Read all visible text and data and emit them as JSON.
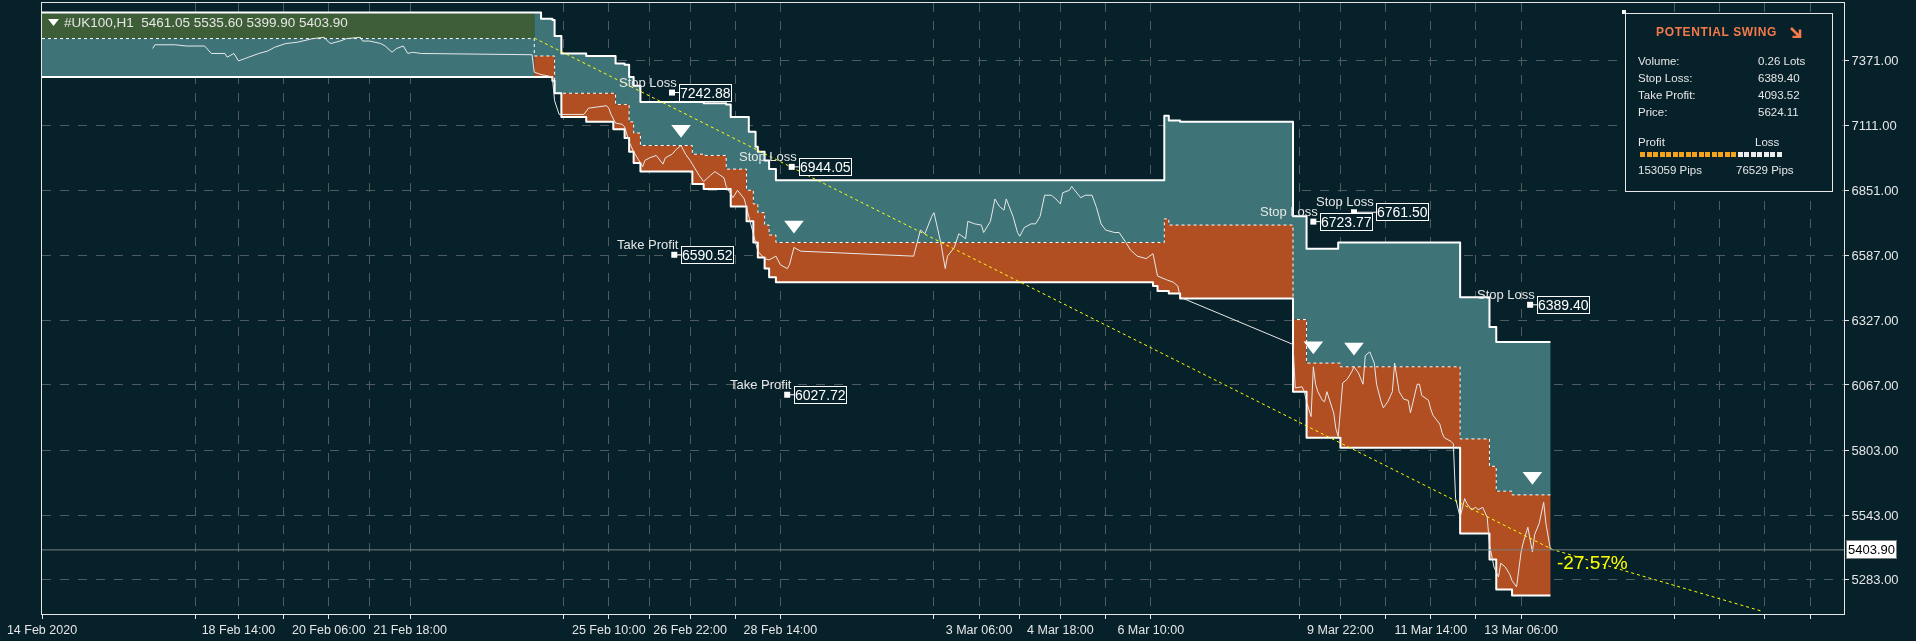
{
  "chart_data": {
    "type": "line",
    "title": "#UK100,H1  5461.05 5535.60 5399.90 5403.90",
    "xlim": [
      "2020-02-14T23:00",
      "2020-03-19T05:00"
    ],
    "ylim": [
      5146,
      7603
    ],
    "xticks": [
      {
        "value": "2020-02-14T23:00",
        "label": "14 Feb 2020"
      },
      {
        "value": "2020-02-17T19:00",
        "label": null
      },
      {
        "value": "2020-02-18T14:00",
        "label": "18 Feb 14:00"
      },
      {
        "value": "2020-02-19T10:00",
        "label": null
      },
      {
        "value": "2020-02-20T06:00",
        "label": "20 Feb 06:00"
      },
      {
        "value": "2020-02-21T00:00",
        "label": null
      },
      {
        "value": "2020-02-21T18:00",
        "label": "21 Feb 18:00"
      },
      {
        "value": "2020-02-24T14:00",
        "label": null
      },
      {
        "value": "2020-02-25T10:00",
        "label": "25 Feb 10:00"
      },
      {
        "value": "2020-02-26T04:00",
        "label": null
      },
      {
        "value": "2020-02-26T22:00",
        "label": "26 Feb 22:00"
      },
      {
        "value": "2020-02-27T18:00",
        "label": null
      },
      {
        "value": "2020-02-28T14:00",
        "label": "28 Feb 14:00"
      },
      {
        "value": "2020-03-02T10:00",
        "label": null
      },
      {
        "value": "2020-03-03T06:00",
        "label": "3 Mar 06:00"
      },
      {
        "value": "2020-03-04T00:00",
        "label": null
      },
      {
        "value": "2020-03-04T18:00",
        "label": "4 Mar 18:00"
      },
      {
        "value": "2020-03-05T14:00",
        "label": null
      },
      {
        "value": "2020-03-06T10:00",
        "label": "6 Mar 10:00"
      },
      {
        "value": "2020-03-09T04:00",
        "label": null
      },
      {
        "value": "2020-03-09T22:00",
        "label": "9 Mar 22:00"
      },
      {
        "value": "2020-03-10T18:00",
        "label": null
      },
      {
        "value": "2020-03-11T14:00",
        "label": "11 Mar 14:00"
      },
      {
        "value": "2020-03-12T10:00",
        "label": null
      },
      {
        "value": "2020-03-13T06:00",
        "label": "13 Mar 06:00"
      },
      {
        "value": "2020-03-16T02:00",
        "label": null
      },
      {
        "value": "2020-03-16T22:00",
        "label": null
      },
      {
        "value": "2020-03-17T18:00",
        "label": null
      },
      {
        "value": "2020-03-18T14:00",
        "label": null
      }
    ],
    "yticks": [
      {
        "value": 7371,
        "label": "7371.00"
      },
      {
        "value": 7111,
        "label": "7111.00"
      },
      {
        "value": 6851,
        "label": "6851.00"
      },
      {
        "value": 6587,
        "label": "6587.00"
      },
      {
        "value": 6327,
        "label": "6327.00"
      },
      {
        "value": 6067,
        "label": "6067.00"
      },
      {
        "value": 5803,
        "label": "5803.00"
      },
      {
        "value": 5543,
        "label": "5543.00"
      },
      {
        "value": 5283,
        "label": "5283.00"
      }
    ],
    "grid": true,
    "series": [
      {
        "type": "step",
        "color": "#3e5e37",
        "x": [
          "2020-02-14T23:00",
          "2020-02-24T01:00"
        ],
        "values": [
          null,
          null
        ],
        "lower": [
          7460,
          7460
        ],
        "upper": [
          7565,
          7565
        ]
      },
      {
        "type": "step",
        "color": "#3e7478",
        "x": [
          "2020-02-14T23:00",
          "2020-02-24T01:00",
          "2020-02-24T04:00",
          "2020-02-24T09:00",
          "2020-02-24T10:00",
          "2020-02-24T13:00",
          "2020-02-25T00:00",
          "2020-02-25T12:00",
          "2020-02-25T13:00",
          "2020-02-25T17:00",
          "2020-02-25T19:00",
          "2020-02-25T21:00",
          "2020-02-26T00:00",
          "2020-02-26T23:00",
          "2020-02-27T04:00",
          "2020-02-27T14:00",
          "2020-02-27T16:00",
          "2020-02-27T23:00",
          "2020-02-28T00:00",
          "2020-02-28T02:00",
          "2020-02-28T03:00",
          "2020-02-28T04:00",
          "2020-02-28T07:00",
          "2020-02-28T09:00",
          "2020-02-28T12:00",
          "2020-03-06T11:00",
          "2020-03-06T13:00",
          "2020-03-06T16:00",
          "2020-03-06T18:00",
          "2020-03-06T23:00",
          "2020-03-09T01:00",
          "2020-03-09T07:00",
          "2020-03-09T21:00",
          "2020-03-09T22:00",
          "2020-03-12T03:00",
          "2020-03-12T16:00",
          "2020-03-12T19:00",
          "2020-03-13T02:00",
          "2020-03-13T19:00"
        ],
        "values": [
          null,
          null,
          null,
          null,
          null,
          null,
          null,
          null,
          null,
          null,
          null,
          null,
          null,
          null,
          null,
          null,
          null,
          null,
          null,
          null,
          null,
          null,
          null,
          null,
          null,
          null,
          null,
          null,
          null,
          null,
          null,
          null,
          null,
          null,
          null,
          null,
          null,
          null,
          null
        ],
        "lower": [
          7305,
          7390,
          7390,
          7390,
          7240,
          7240,
          7240,
          7240,
          7195,
          7195,
          7125,
          7080,
          7030,
          6995,
          6990,
          6935,
          6935,
          6850,
          6850,
          6795,
          6795,
          6760,
          6710,
          6670,
          6640,
          6640,
          6640,
          6735,
          6710,
          6710,
          6330,
          6155,
          6155,
          6140,
          5850,
          5740,
          5640,
          5625,
          5625
        ],
        "upper": [
          7460,
          7565,
          7540,
          7535,
          7470,
          7400,
          7390,
          7390,
          7360,
          7355,
          7305,
          7270,
          7205,
          7205,
          7200,
          7195,
          7145,
          7145,
          7085,
          7085,
          7025,
          7005,
          6970,
          6935,
          6890,
          6890,
          6890,
          7150,
          7130,
          7125,
          6745,
          6615,
          6640,
          6640,
          6420,
          6300,
          6240,
          6240,
          6240
        ]
      },
      {
        "type": "step",
        "color": "#b14f22",
        "x": [
          "2020-02-24T01:00",
          "2020-02-24T04:00",
          "2020-02-24T09:00",
          "2020-02-24T10:00",
          "2020-02-24T13:00",
          "2020-02-25T00:00",
          "2020-02-25T12:00",
          "2020-02-25T13:00",
          "2020-02-25T17:00",
          "2020-02-25T19:00",
          "2020-02-25T21:00",
          "2020-02-26T00:00",
          "2020-02-26T23:00",
          "2020-02-27T04:00",
          "2020-02-27T14:00",
          "2020-02-27T16:00",
          "2020-02-27T23:00",
          "2020-02-28T00:00",
          "2020-02-28T02:00",
          "2020-02-28T03:00",
          "2020-02-28T04:00",
          "2020-02-28T07:00",
          "2020-02-28T09:00",
          "2020-02-28T12:00",
          "2020-03-06T11:00",
          "2020-03-06T13:00",
          "2020-03-06T16:00",
          "2020-03-06T18:00",
          "2020-03-06T23:00",
          "2020-03-09T01:00",
          "2020-03-09T07:00",
          "2020-03-09T21:00",
          "2020-03-09T22:00",
          "2020-03-12T03:00",
          "2020-03-12T16:00",
          "2020-03-12T19:00",
          "2020-03-13T02:00",
          "2020-03-13T19:00"
        ],
        "values": [
          null,
          null,
          null,
          null,
          null,
          null,
          null,
          null,
          null,
          null,
          null,
          null,
          null,
          null,
          null,
          null,
          null,
          null,
          null,
          null,
          null,
          null,
          null,
          null,
          null,
          null,
          null,
          null,
          null,
          null,
          null,
          null,
          null,
          null,
          null,
          null,
          null,
          null
        ],
        "lower": [
          7305,
          7305,
          7290,
          7240,
          7145,
          7125,
          7095,
          7095,
          7060,
          7005,
          6960,
          6925,
          6875,
          6855,
          6855,
          6785,
          6725,
          6725,
          6640,
          6640,
          6580,
          6535,
          6500,
          6480,
          6465,
          6445,
          6445,
          6435,
          6415,
          6040,
          5855,
          5855,
          5815,
          5470,
          5365,
          5245,
          5220,
          5220
        ],
        "upper": [
          7390,
          7390,
          7390,
          7240,
          7240,
          7240,
          7240,
          7195,
          7195,
          7125,
          7080,
          7030,
          6995,
          6990,
          6935,
          6935,
          6850,
          6850,
          6795,
          6795,
          6760,
          6710,
          6670,
          6640,
          6640,
          6640,
          6735,
          6710,
          6710,
          6330,
          6155,
          6155,
          6140,
          5850,
          5740,
          5640,
          5625,
          5625
        ]
      },
      {
        "type": "step",
        "color": "#ffffff",
        "x": [
          "2020-02-14T23:00",
          "2020-02-24T01:00",
          "2020-02-24T04:00",
          "2020-02-24T09:00",
          "2020-02-24T10:00",
          "2020-02-24T13:00",
          "2020-02-25T00:00",
          "2020-02-25T12:00",
          "2020-02-25T13:00",
          "2020-02-25T17:00",
          "2020-02-25T19:00",
          "2020-02-25T21:00",
          "2020-02-26T00:00",
          "2020-02-26T23:00",
          "2020-02-27T04:00",
          "2020-02-27T14:00",
          "2020-02-27T16:00",
          "2020-02-27T23:00",
          "2020-02-28T00:00",
          "2020-02-28T02:00",
          "2020-02-28T03:00",
          "2020-02-28T04:00",
          "2020-02-28T07:00",
          "2020-02-28T09:00",
          "2020-02-28T12:00",
          "2020-03-06T11:00",
          "2020-03-06T13:00",
          "2020-03-06T16:00",
          "2020-03-06T18:00",
          "2020-03-06T23:00",
          "2020-03-09T01:00",
          "2020-03-09T07:00",
          "2020-03-09T21:00",
          "2020-03-09T22:00",
          "2020-03-12T03:00",
          "2020-03-12T16:00",
          "2020-03-12T19:00",
          "2020-03-13T02:00",
          "2020-03-13T19:00"
        ],
        "values": [
          7565,
          7565,
          7540,
          7535,
          7470,
          7400,
          7390,
          7390,
          7360,
          7355,
          7305,
          7270,
          7205,
          7205,
          7200,
          7195,
          7145,
          7145,
          7085,
          7085,
          7025,
          7005,
          6970,
          6935,
          6890,
          6890,
          6890,
          7150,
          7130,
          7125,
          6745,
          6615,
          6640,
          6640,
          6420,
          6300,
          6240,
          6240,
          6240
        ]
      },
      {
        "type": "step",
        "color": "#ffffff",
        "line_style": "dashed",
        "x": [
          "2020-02-14T23:00",
          "2020-02-24T01:00",
          "2020-02-24T04:00",
          "2020-02-24T09:00",
          "2020-02-24T10:00",
          "2020-02-24T13:00",
          "2020-02-25T00:00",
          "2020-02-25T12:00",
          "2020-02-25T13:00",
          "2020-02-25T17:00",
          "2020-02-25T19:00",
          "2020-02-25T21:00",
          "2020-02-26T00:00",
          "2020-02-26T23:00",
          "2020-02-27T04:00",
          "2020-02-27T14:00",
          "2020-02-27T16:00",
          "2020-02-27T23:00",
          "2020-02-28T00:00",
          "2020-02-28T02:00",
          "2020-02-28T03:00",
          "2020-02-28T04:00",
          "2020-02-28T07:00",
          "2020-02-28T09:00",
          "2020-02-28T12:00",
          "2020-03-06T11:00",
          "2020-03-06T13:00",
          "2020-03-06T16:00",
          "2020-03-06T18:00",
          "2020-03-06T23:00",
          "2020-03-09T01:00",
          "2020-03-09T07:00",
          "2020-03-09T21:00",
          "2020-03-09T22:00",
          "2020-03-12T03:00",
          "2020-03-12T16:00",
          "2020-03-12T19:00",
          "2020-03-13T02:00",
          "2020-03-13T19:00"
        ],
        "values": [
          7460,
          7390,
          7390,
          7390,
          7240,
          7240,
          7240,
          7240,
          7195,
          7195,
          7125,
          7080,
          7030,
          6995,
          6990,
          6935,
          6935,
          6850,
          6850,
          6795,
          6795,
          6760,
          6710,
          6670,
          6640,
          6640,
          6640,
          6735,
          6710,
          6710,
          6330,
          6155,
          6155,
          6140,
          5850,
          5740,
          5640,
          5625,
          5625
        ]
      },
      {
        "type": "step",
        "color": "#ffffff",
        "x": [
          "2020-02-14T23:00",
          "2020-02-24T01:00",
          "2020-02-24T04:00",
          "2020-02-24T09:00",
          "2020-02-24T10:00",
          "2020-02-24T13:00",
          "2020-02-25T00:00",
          "2020-02-25T12:00",
          "2020-02-25T13:00",
          "2020-02-25T17:00",
          "2020-02-25T19:00",
          "2020-02-25T21:00",
          "2020-02-26T00:00",
          "2020-02-26T23:00",
          "2020-02-27T04:00",
          "2020-02-27T14:00",
          "2020-02-27T16:00",
          "2020-02-27T23:00",
          "2020-02-28T00:00",
          "2020-02-28T02:00",
          "2020-02-28T03:00",
          "2020-02-28T04:00",
          "2020-02-28T07:00",
          "2020-02-28T09:00",
          "2020-02-28T12:00",
          "2020-03-06T11:00",
          "2020-03-06T13:00",
          "2020-03-06T16:00",
          "2020-03-06T18:00",
          "2020-03-06T23:00",
          "2020-03-09T01:00",
          "2020-03-09T07:00",
          "2020-03-09T21:00",
          "2020-03-09T22:00",
          "2020-03-12T03:00",
          "2020-03-12T16:00",
          "2020-03-12T19:00",
          "2020-03-13T02:00",
          "2020-03-13T19:00"
        ],
        "values": [
          7305,
          7305,
          7305,
          7290,
          7240,
          7145,
          7125,
          7095,
          7095,
          7060,
          7005,
          6960,
          6925,
          6875,
          6855,
          6855,
          6785,
          6725,
          6725,
          6640,
          6640,
          6580,
          6535,
          6500,
          6480,
          6465,
          6445,
          6445,
          6435,
          6415,
          6040,
          5855,
          5855,
          5815,
          5470,
          5365,
          5245,
          5220,
          5220
        ]
      },
      {
        "color": "#e8e8e8",
        "x": [
          "2020-02-17T00:00",
          "2020-02-17T01:00",
          "2020-02-17T05:00",
          "2020-02-17T10:00",
          "2020-02-17T15:00",
          "2020-02-17T23:00",
          "2020-02-18T02:00",
          "2020-02-18T08:00",
          "2020-02-18T09:00",
          "2020-02-18T12:00",
          "2020-02-18T14:00",
          "2020-02-18T17:00",
          "2020-02-18T20:00",
          "2020-02-18T23:00",
          "2020-02-19T03:00",
          "2020-02-19T06:00",
          "2020-02-19T11:00",
          "2020-02-19T16:00",
          "2020-02-19T23:00",
          "2020-02-20T04:00",
          "2020-02-20T06:00",
          "2020-02-20T07:00",
          "2020-02-20T11:00",
          "2020-02-20T14:00",
          "2020-02-20T20:00",
          "2020-02-20T21:00",
          "2020-02-21T00:00",
          "2020-02-21T05:00",
          "2020-02-21T07:00",
          "2020-02-21T10:00",
          "2020-02-21T12:00",
          "2020-02-21T15:00",
          "2020-02-21T17:00",
          "2020-02-21T19:00",
          "2020-02-21T23:00",
          "2020-02-24T00:00",
          "2020-02-24T01:00",
          "2020-02-24T04:00",
          "2020-02-24T07:00",
          "2020-02-24T09:00",
          "2020-02-24T10:00",
          "2020-02-24T12:00",
          "2020-02-24T18:00",
          "2020-02-24T23:00",
          "2020-02-25T01:00",
          "2020-02-25T05:00",
          "2020-02-25T09:00",
          "2020-02-25T10:00",
          "2020-02-25T11:00",
          "2020-02-25T13:00",
          "2020-02-25T16:00",
          "2020-02-25T17:00",
          "2020-02-25T19:00",
          "2020-02-25T21:00",
          "2020-02-26T00:00",
          "2020-02-26T01:00",
          "2020-02-26T02:00",
          "2020-02-26T04:00",
          "2020-02-26T07:00",
          "2020-02-26T10:00",
          "2020-02-26T11:00",
          "2020-02-26T14:00",
          "2020-02-26T16:00",
          "2020-02-26T18:00",
          "2020-02-26T20:00",
          "2020-02-26T22:00",
          "2020-02-26T23:00",
          "2020-02-27T02:00",
          "2020-02-27T04:00",
          "2020-02-27T07:00",
          "2020-02-27T09:00",
          "2020-02-27T13:00",
          "2020-02-27T14:00",
          "2020-02-27T17:00",
          "2020-02-27T19:00",
          "2020-02-27T22:00",
          "2020-02-28T00:00",
          "2020-02-28T02:00",
          "2020-02-28T04:00",
          "2020-02-28T07:00",
          "2020-02-28T09:00",
          "2020-02-28T12:00",
          "2020-02-28T14:00",
          "2020-02-28T17:00",
          "2020-02-28T18:00",
          "2020-02-28T20:00",
          "2020-02-28T23:00",
          "2020-03-02T01:00",
          "2020-03-02T04:00",
          "2020-03-02T06:00",
          "2020-03-02T09:00",
          "2020-03-02T10:00",
          "2020-03-02T13:00",
          "2020-03-02T15:00",
          "2020-03-02T16:00",
          "2020-03-02T19:00",
          "2020-03-02T21:00",
          "2020-03-03T00:00",
          "2020-03-03T01:00",
          "2020-03-03T04:00",
          "2020-03-03T07:00",
          "2020-03-03T08:00",
          "2020-03-03T11:00",
          "2020-03-03T13:00",
          "2020-03-03T15:00",
          "2020-03-03T17:00",
          "2020-03-03T18:00",
          "2020-03-03T21:00",
          "2020-03-03T23:00",
          "2020-03-04T00:00",
          "2020-03-04T02:00",
          "2020-03-04T05:00",
          "2020-03-04T07:00",
          "2020-03-04T09:00",
          "2020-03-04T11:00",
          "2020-03-04T14:00",
          "2020-03-04T16:00",
          "2020-03-04T18:00",
          "2020-03-04T19:00",
          "2020-03-04T22:00",
          "2020-03-04T23:00",
          "2020-03-05T03:00",
          "2020-03-05T05:00",
          "2020-03-05T08:00",
          "2020-03-05T10:00",
          "2020-03-05T12:00",
          "2020-03-05T14:00",
          "2020-03-05T18:00",
          "2020-03-05T20:00",
          "2020-03-05T23:00",
          "2020-03-06T01:00",
          "2020-03-06T04:00",
          "2020-03-06T08:00",
          "2020-03-06T11:00",
          "2020-03-06T13:00",
          "2020-03-06T17:00",
          "2020-03-06T20:00",
          "2020-03-06T22:00",
          "2020-03-06T23:00",
          "2020-03-09T01:00",
          "2020-03-09T02:00",
          "2020-03-09T05:00",
          "2020-03-09T06:00",
          "2020-03-09T07:00",
          "2020-03-09T09:00",
          "2020-03-09T10:00",
          "2020-03-09T11:00",
          "2020-03-09T12:00",
          "2020-03-09T14:00",
          "2020-03-09T15:00",
          "2020-03-09T16:00",
          "2020-03-09T19:00",
          "2020-03-09T20:00",
          "2020-03-09T21:00",
          "2020-03-09T23:00",
          "2020-03-10T01:00",
          "2020-03-10T03:00",
          "2020-03-10T04:00",
          "2020-03-10T06:00",
          "2020-03-10T08:00",
          "2020-03-10T09:00",
          "2020-03-10T11:00",
          "2020-03-10T13:00",
          "2020-03-10T14:00",
          "2020-03-10T16:00",
          "2020-03-10T17:00",
          "2020-03-10T19:00",
          "2020-03-10T21:00",
          "2020-03-10T22:00",
          "2020-03-11T00:00",
          "2020-03-11T02:00",
          "2020-03-11T04:00",
          "2020-03-11T05:00",
          "2020-03-11T08:00",
          "2020-03-11T09:00",
          "2020-03-11T10:00",
          "2020-03-11T13:00",
          "2020-03-11T14:00",
          "2020-03-11T15:00",
          "2020-03-11T18:00",
          "2020-03-11T19:00",
          "2020-03-11T20:00",
          "2020-03-11T23:00",
          "2020-03-12T00:00",
          "2020-03-12T01:00",
          "2020-03-12T03:00",
          "2020-03-12T05:00",
          "2020-03-12T06:00",
          "2020-03-12T08:00",
          "2020-03-12T10:00",
          "2020-03-12T11:00",
          "2020-03-12T13:00",
          "2020-03-12T15:00",
          "2020-03-12T16:00",
          "2020-03-12T18:00",
          "2020-03-12T20:00",
          "2020-03-12T21:00",
          "2020-03-12T23:00",
          "2020-03-13T01:00",
          "2020-03-13T02:00",
          "2020-03-13T04:00",
          "2020-03-13T06:00",
          "2020-03-13T07:00",
          "2020-03-13T09:00",
          "2020-03-13T11:00",
          "2020-03-13T12:00",
          "2020-03-13T14:00",
          "2020-03-13T16:00",
          "2020-03-13T17:00",
          "2020-03-13T19:00"
        ],
        "values": [
          7420,
          7435,
          7435,
          7435,
          7430,
          7430,
          7400,
          7400,
          7385,
          7400,
          7370,
          7380,
          7390,
          7400,
          7410,
          7425,
          7440,
          7445,
          7460,
          7465,
          7445,
          7440,
          7450,
          7460,
          7465,
          7450,
          7450,
          7440,
          7430,
          7405,
          7420,
          7430,
          7400,
          7405,
          7400,
          7395,
          7325,
          7315,
          7310,
          7305,
          7210,
          7155,
          7155,
          7155,
          7180,
          7185,
          7190,
          7180,
          7155,
          7120,
          7115,
          7105,
          7045,
          7005,
          6960,
          6945,
          6970,
          6980,
          6990,
          6955,
          6980,
          6995,
          7015,
          7030,
          6995,
          6970,
          6955,
          6910,
          6885,
          6910,
          6925,
          6900,
          6865,
          6820,
          6850,
          6815,
          6745,
          6675,
          6605,
          6575,
          6570,
          6585,
          6550,
          6535,
          6550,
          6620,
          6605,
          6585,
          6690,
          6675,
          6745,
          6760,
          6640,
          6535,
          6585,
          6620,
          6675,
          6655,
          6725,
          6715,
          6710,
          6680,
          6725,
          6815,
          6785,
          6770,
          6815,
          6745,
          6680,
          6665,
          6700,
          6715,
          6715,
          6745,
          6830,
          6830,
          6815,
          6795,
          6840,
          6850,
          6865,
          6820,
          6830,
          6830,
          6780,
          6715,
          6690,
          6680,
          6680,
          6640,
          6610,
          6585,
          6575,
          6595,
          6505,
          6490,
          6480,
          6465,
          6420,
          6230,
          6055,
          6060,
          6040,
          6000,
          5940,
          6140,
          6070,
          6040,
          6005,
          6000,
          6040,
          5955,
          5890,
          5860,
          6075,
          6090,
          6120,
          6140,
          6115,
          6070,
          6185,
          6200,
          6155,
          6070,
          6000,
          5975,
          6000,
          6040,
          6155,
          6040,
          6010,
          6005,
          5955,
          6070,
          6070,
          6025,
          6005,
          5970,
          5945,
          5910,
          5875,
          5855,
          5840,
          5830,
          5610,
          5535,
          5610,
          5590,
          5565,
          5575,
          5565,
          5575,
          5535,
          5425,
          5335,
          5295,
          5350,
          5335,
          5305,
          5280,
          5255,
          5395,
          5435,
          5495,
          5395,
          5465,
          5510,
          5595,
          5510,
          5405
        ]
      },
      {
        "type": "line",
        "color": "#ffff00",
        "line_style": "dashed",
        "x": [
          "2020-02-24T01:00",
          "2020-03-13T20:00",
          "2020-03-17T16:00"
        ],
        "values": [
          7462,
          5405,
          5159
        ]
      },
      {
        "type": "scatter",
        "color": "#ffffff",
        "marker": "triangle",
        "x": [
          "2020-02-26T18:00",
          "2020-02-28T20:00",
          "2020-03-09T10:00",
          "2020-03-10T04:00",
          "2020-03-13T11:00"
        ],
        "values": [
          7095,
          6710,
          6225,
          6220,
          5700
        ]
      },
      {
        "type": "scatter",
        "color": "#ffffff",
        "marker": "square",
        "x": [
          "2020-02-26T14:00",
          "2020-02-28T19:00",
          "2020-02-26T15:00",
          "2020-02-28T17:00",
          "2020-03-09T10:00",
          "2020-03-10T04:00",
          "2020-03-13T10:00"
        ],
        "values": [
          7242.88,
          6944.05,
          6590.52,
          6027.72,
          6723.77,
          6761.5,
          6389.4
        ],
        "value_labels": [
          "7242.88",
          "6944.05",
          "6590.52",
          "6027.72",
          "6723.77",
          "6761.50",
          "6389.40"
        ]
      }
    ],
    "ref_lines": [
      {
        "axis": "y",
        "value": 5403.9,
        "label": "5403.90",
        "color": "#7a7f80"
      }
    ],
    "annotations": [
      {
        "text": "Stop Loss",
        "x": "2020-02-26T14:00",
        "y": 7242.88
      },
      {
        "text": "Stop Loss",
        "x": "2020-02-28T19:00",
        "y": 6944.05
      },
      {
        "text": "Take Profit",
        "x": "2020-02-26T15:00",
        "y": 6590.52
      },
      {
        "text": "Take Profit",
        "x": "2020-02-28T17:00",
        "y": 6027.72
      },
      {
        "text": "Stop Loss",
        "x": "2020-03-09T10:00",
        "y": 6723.77
      },
      {
        "text": "Stop Loss",
        "x": "2020-03-10T04:00",
        "y": 6761.5
      },
      {
        "text": "Stop Loss",
        "x": "2020-03-13T10:00",
        "y": 6389.4
      },
      {
        "text": "-27.57%",
        "x": "2020-03-13T20:00",
        "y": 5405
      },
      "POTENTIAL SWING",
      "Volume:",
      "0.26 Lots",
      "Stop Loss:",
      "6389.40",
      "Take Profit:",
      "4093.52",
      "Price:",
      "5624.11",
      "Profit",
      "Loss",
      "153059 Pips",
      "76529 Pips"
    ]
  }
}
